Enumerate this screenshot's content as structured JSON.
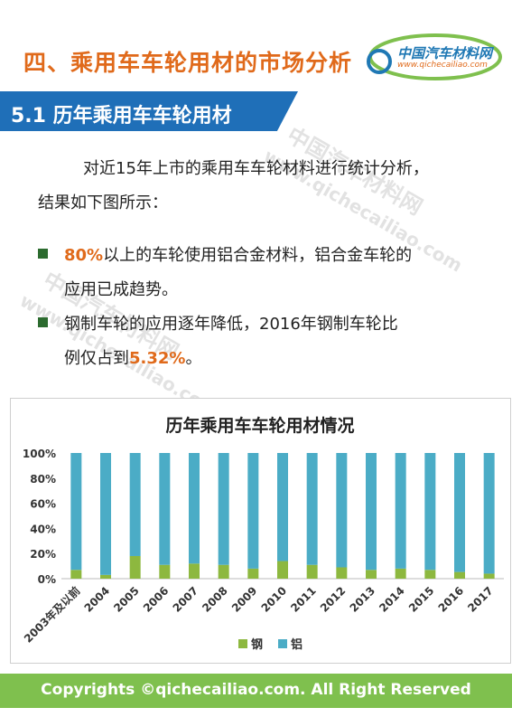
{
  "header": {
    "title": "四、乘用车车轮用材的市场分析",
    "logo_text": "中国汽车材料网",
    "logo_url": "www.qichecailiao.com"
  },
  "section": {
    "title": "5.1 历年乘用车车轮用材"
  },
  "body": {
    "intro_line1": "对近15年上市的乘用车车轮材料进行统计分析，",
    "intro_line2": "结果如下图所示：",
    "bullets": [
      {
        "highlight": "80%",
        "text_a": "以上的车轮使用铝合金材料，铝合金车轮的",
        "text_b": "应用已成趋势。"
      },
      {
        "text_a": "钢制车轮的应用逐年降低，2016年钢制车轮比",
        "text_b_pre": "例仅占到",
        "highlight": "5.32%",
        "text_b_post": "。"
      }
    ]
  },
  "watermarks": {
    "cn": "中国汽车材料网",
    "url": "www.qichecailiao.com"
  },
  "footer": {
    "text": "Copyrights ©qichecailiao.com. All Right Reserved"
  },
  "colors": {
    "steel": "#8db83f",
    "aluminum": "#4bacc6",
    "accent": "#e06a1b",
    "section_bar": "#1f6fb8",
    "footer": "#7fc04e"
  },
  "chart_data": {
    "type": "bar",
    "stacked": true,
    "title": "历年乘用车车轮用材情况",
    "categories": [
      "2003年及以前",
      "2004",
      "2005",
      "2006",
      "2007",
      "2008",
      "2009",
      "2010",
      "2011",
      "2012",
      "2013",
      "2014",
      "2015",
      "2016",
      "2017"
    ],
    "series": [
      {
        "name": "钢",
        "color": "#8db83f",
        "values": [
          7,
          3,
          18,
          11,
          12,
          11,
          8,
          14,
          11,
          9,
          7,
          8,
          7,
          5.32,
          4
        ]
      },
      {
        "name": "铝",
        "color": "#4bacc6",
        "values": [
          93,
          97,
          82,
          89,
          88,
          89,
          92,
          86,
          89,
          91,
          93,
          92,
          93,
          94.68,
          96
        ]
      }
    ],
    "ylim": [
      0,
      100
    ],
    "yticks": [
      "0%",
      "20%",
      "40%",
      "60%",
      "80%",
      "100%"
    ],
    "grid": false,
    "legend": "bottom"
  }
}
